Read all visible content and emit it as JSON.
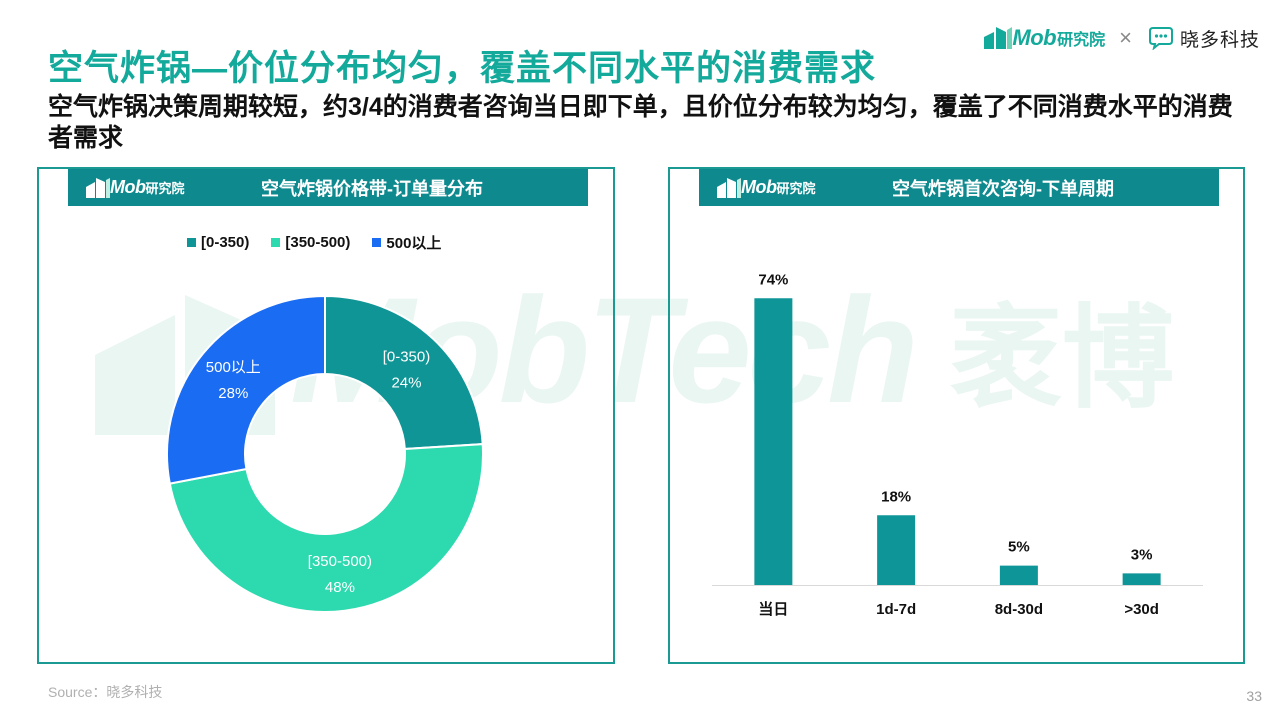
{
  "header": {
    "mob_logo_text": "Mob",
    "mob_logo_cn": "研究院",
    "cross_symbol": "×",
    "partner_name": "晓多科技"
  },
  "title": "空气炸锅—价位分布均匀，覆盖不同水平的消费需求",
  "subtitle": "空气炸锅决策周期较短，约3/4的消费者咨询当日即下单，且价位分布较为均匀，覆盖了不同消费水平的消费者需求",
  "watermark": {
    "text": "MobTech",
    "cn": "袤博"
  },
  "left_panel": {
    "logo_mob": "Mob",
    "logo_cn": "研究院",
    "title": "空气炸锅价格带-订单量分布"
  },
  "right_panel": {
    "logo_mob": "Mob",
    "logo_cn": "研究院",
    "title": "空气炸锅首次咨询-下单周期"
  },
  "chart_data": [
    {
      "type": "pie",
      "variant": "donut",
      "title": "空气炸锅价格带-订单量分布",
      "legend_position": "top",
      "slices": [
        {
          "label": "[0-350)",
          "value": 24,
          "value_label": "24%",
          "color": "#0f9596"
        },
        {
          "label": "[350-500)",
          "value": 48,
          "value_label": "48%",
          "color": "#2dd9ae"
        },
        {
          "label": "500以上",
          "value": 28,
          "value_label": "28%",
          "color": "#1a6cf2"
        }
      ]
    },
    {
      "type": "bar",
      "title": "空气炸锅首次咨询-下单周期",
      "categories": [
        "当日",
        "1d-7d",
        "8d-30d",
        ">30d"
      ],
      "values": [
        74,
        18,
        5,
        3
      ],
      "value_labels": [
        "74%",
        "18%",
        "5%",
        "3%"
      ],
      "color": "#0e9597",
      "ylim": [
        0,
        80
      ],
      "grid": false
    }
  ],
  "footer": {
    "source": "Source：晓多科技",
    "page_number": "33"
  }
}
